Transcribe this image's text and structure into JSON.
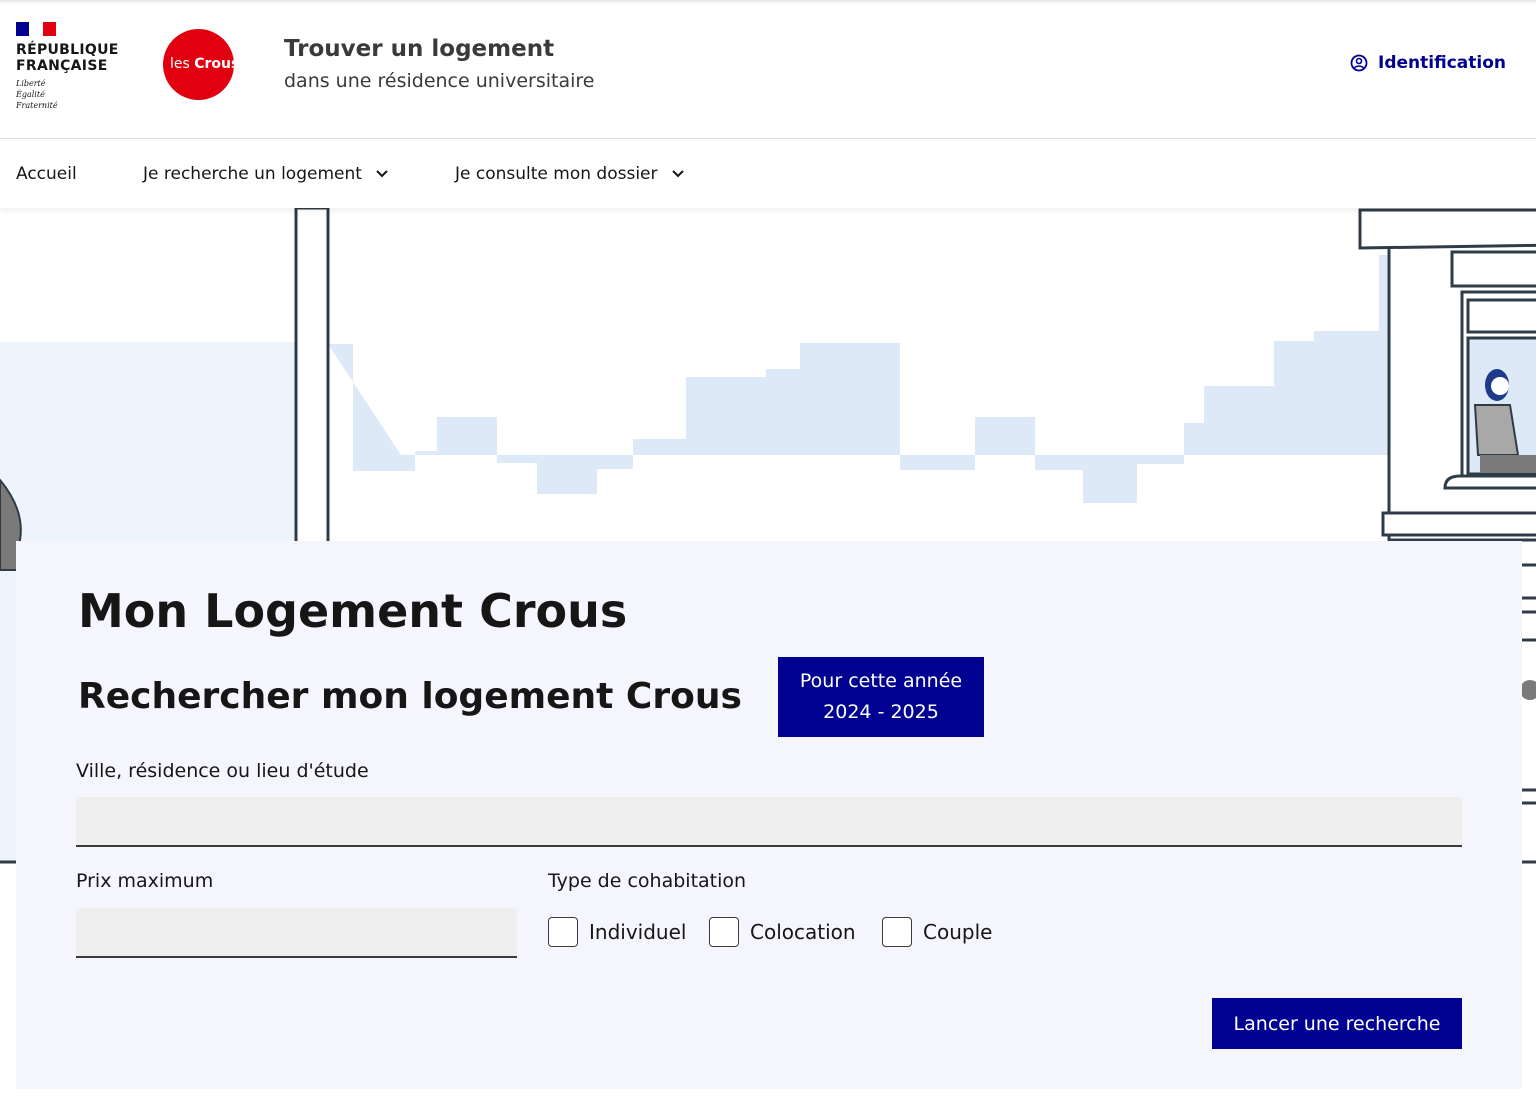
{
  "header": {
    "republique": "RÉPUBLIQUE FRANÇAISE",
    "devise": [
      "Liberté",
      "Égalité",
      "Fraternité"
    ],
    "crous_logo": "les Crous",
    "title": "Trouver un logement",
    "subtitle": "dans une résidence universitaire",
    "identification": "Identification"
  },
  "nav": {
    "items": [
      {
        "label": "Accueil"
      },
      {
        "label": "Je recherche un logement"
      },
      {
        "label": "Je consulte mon dossier"
      }
    ]
  },
  "main": {
    "title": "Mon Logement Crous",
    "subtitle": "Rechercher mon logement Crous",
    "year_badge": {
      "line1": "Pour cette année",
      "line2": "2024 - 2025"
    },
    "location_label": "Ville, résidence ou lieu d'étude",
    "location_value": "",
    "price_label": "Prix maximum",
    "price_value": "",
    "cohabitation_label": "Type de cohabitation",
    "cohabitation_options": [
      "Individuel",
      "Colocation",
      "Couple"
    ],
    "search_button": "Lancer une recherche"
  },
  "colors": {
    "primary": "#000091",
    "crous_red": "#e1000f"
  }
}
